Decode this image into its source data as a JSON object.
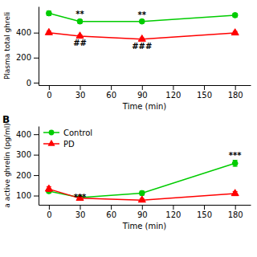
{
  "chart_data": [
    {
      "type": "line",
      "ylabel": "Plasma total ghreli",
      "xlabel": "Time (min)",
      "x": [
        0,
        30,
        90,
        180
      ],
      "xlim": [
        -10,
        195
      ],
      "xticks": [
        0,
        30,
        60,
        90,
        120,
        150,
        180
      ],
      "ylim": [
        -20,
        610
      ],
      "yticks": [
        0,
        200,
        400
      ],
      "grid": false,
      "series": [
        {
          "color": "#00CC00",
          "marker": "circle",
          "values": [
            555,
            490,
            490,
            540
          ],
          "errors": [
            18,
            15,
            12,
            15
          ]
        },
        {
          "color": "#FF0000",
          "marker": "triangle",
          "values": [
            400,
            372,
            348,
            398
          ],
          "errors": [
            12,
            10,
            10,
            12
          ]
        }
      ],
      "annotations": [
        {
          "text": "**",
          "x": 30,
          "y": 515,
          "color": "black"
        },
        {
          "text": "**",
          "x": 90,
          "y": 510,
          "color": "black"
        },
        {
          "text": "##",
          "x": 30,
          "y": 345,
          "color": "black"
        },
        {
          "text": "###",
          "x": 90,
          "y": 318,
          "color": "black"
        }
      ]
    },
    {
      "type": "line",
      "title": "B",
      "ylabel": "a active ghrelin (pg/ml)",
      "xlabel": "Time (min)",
      "x": [
        0,
        30,
        90,
        180
      ],
      "xlim": [
        -10,
        195
      ],
      "xticks": [
        0,
        30,
        60,
        90,
        120,
        150,
        180
      ],
      "ylim": [
        55,
        440
      ],
      "yticks": [
        100,
        200,
        300,
        400
      ],
      "grid": false,
      "legend": "upper left",
      "series": [
        {
          "name": "Control",
          "color": "#00CC00",
          "marker": "circle",
          "values": [
            122,
            90,
            112,
            258
          ],
          "errors": [
            10,
            7,
            10,
            15
          ]
        },
        {
          "name": "PD",
          "color": "#FF0000",
          "marker": "triangle",
          "values": [
            132,
            87,
            78,
            110
          ],
          "errors": [
            12,
            7,
            7,
            10
          ]
        }
      ],
      "annotations": [
        {
          "text": "***",
          "x": 30,
          "y": 72,
          "color": "black"
        },
        {
          "text": "***",
          "x": 180,
          "y": 278,
          "color": "black"
        }
      ]
    }
  ]
}
